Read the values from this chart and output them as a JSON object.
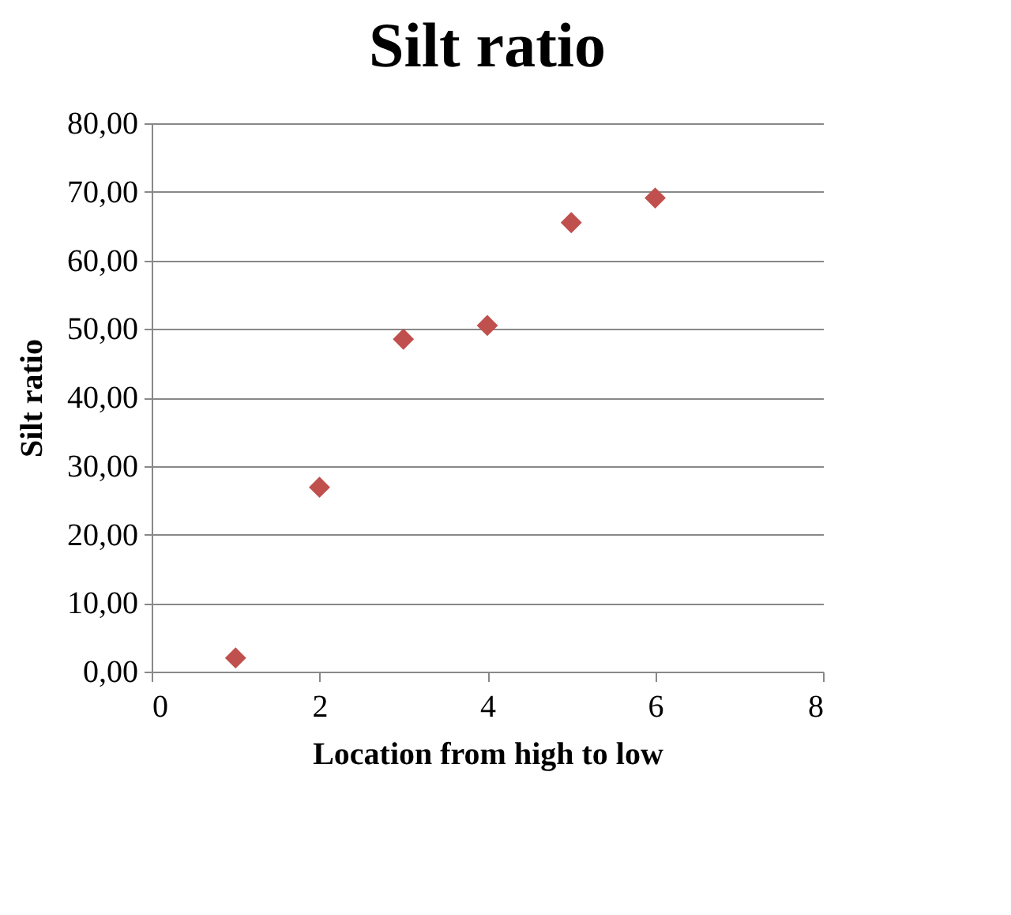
{
  "chart_data": {
    "type": "scatter",
    "title": "Silt ratio",
    "xlabel": "Location from high to low",
    "ylabel": "Silt ratio",
    "x": [
      1,
      2,
      3,
      4,
      5,
      6
    ],
    "series": [
      {
        "color": "#c0504d",
        "values": [
          2.0,
          26.9,
          48.5,
          50.5,
          65.5,
          69.1
        ]
      }
    ],
    "marker": "diamond",
    "grid": "y",
    "legend": false,
    "xlim": [
      0,
      8
    ],
    "xticks": [
      0,
      2,
      4,
      6,
      8
    ],
    "ylim": [
      0,
      80
    ],
    "yticks": [
      {
        "value": 0,
        "label": "0,00"
      },
      {
        "value": 10,
        "label": "10,00"
      },
      {
        "value": 20,
        "label": "20,00"
      },
      {
        "value": 30,
        "label": "30,00"
      },
      {
        "value": 40,
        "label": "40,00"
      },
      {
        "value": 50,
        "label": "50,00"
      },
      {
        "value": 60,
        "label": "60,00"
      },
      {
        "value": 70,
        "label": "70,00"
      },
      {
        "value": 80,
        "label": "80,00"
      }
    ]
  }
}
